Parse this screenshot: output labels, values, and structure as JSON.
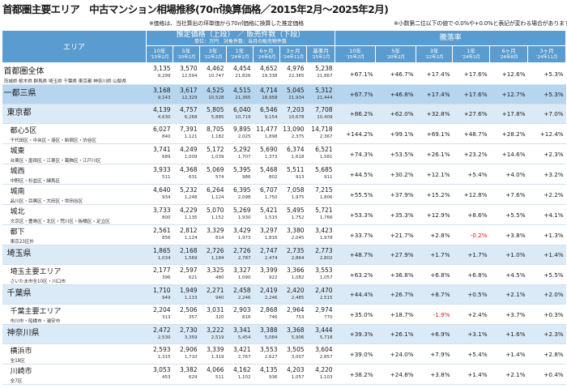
{
  "title": "首都圏主要エリア　中古マンション相場推移(70㎡換算価格／2015年2月～2025年2月)",
  "note_price": "※価格は、当社算出の坪単価から70㎡価格に換算した推定価格",
  "note_rate": "※小数第二位以下の値で-0.0%や+0.0%と表記が変わる場合があります。",
  "header": {
    "area": "エリア",
    "price_group": "推定価格（上段） ／ 販売件数（下段）",
    "price_unit": "単位：万円　対象件数：当月の販売物件数",
    "rate_group": "騰落率",
    "price_cols": [
      {
        "top": "10年",
        "sub": "'15年2月"
      },
      {
        "top": "5年",
        "sub": "'20年2月"
      },
      {
        "top": "3年",
        "sub": "'22年2月"
      },
      {
        "top": "1年",
        "sub": "'24年2月"
      },
      {
        "top": "6ヶ月",
        "sub": "'24年8月"
      },
      {
        "top": "3ヶ月",
        "sub": "'24年11月"
      },
      {
        "top": "基準月",
        "sub": "'25年2月"
      }
    ],
    "rate_cols": [
      {
        "top": "10年",
        "sub": "'15年2月"
      },
      {
        "top": "5年",
        "sub": "'20年2月"
      },
      {
        "top": "3年",
        "sub": "'22年2月"
      },
      {
        "top": "1年",
        "sub": "'24年2月"
      },
      {
        "top": "6ヶ月",
        "sub": "'24年8月"
      },
      {
        "top": "3ヶ月",
        "sub": "'24年11月"
      }
    ]
  },
  "rows": [
    {
      "level": 0,
      "name": "首都圏全体",
      "sub": "茨城県 栃木県 群馬県 埼玉県 千葉県 東京都 神奈川県 山梨県",
      "prices": [
        "3,135",
        "3,570",
        "4,462",
        "4,454",
        "4,652",
        "4,976",
        "5,238"
      ],
      "counts": [
        "9,299",
        "12,594",
        "10,747",
        "21,826",
        "19,338",
        "22,365",
        "21,867"
      ],
      "rates": [
        "+67.1%",
        "+46.7%",
        "+17.4%",
        "+17.6%",
        "+12.6%",
        "+5.3%"
      ]
    },
    {
      "level": 1,
      "name": "一都三県",
      "sub": "",
      "prices": [
        "3,168",
        "3,617",
        "4,525",
        "4,515",
        "4,714",
        "5,045",
        "5,312"
      ],
      "counts": [
        "9,143",
        "12,329",
        "10,528",
        "21,365",
        "18,958",
        "21,934",
        "21,444"
      ],
      "rates": [
        "+67.7%",
        "+46.8%",
        "+17.4%",
        "+17.6%",
        "+12.7%",
        "+5.3%"
      ]
    },
    {
      "level": 2,
      "name": "東京都",
      "sub": "",
      "prices": [
        "4,139",
        "4,757",
        "5,805",
        "6,040",
        "6,546",
        "7,203",
        "7,708"
      ],
      "counts": [
        "4,630",
        "6,268",
        "5,885",
        "10,719",
        "9,154",
        "10,678",
        "10,409"
      ],
      "rates": [
        "+86.2%",
        "+62.0%",
        "+32.8%",
        "+27.6%",
        "+17.8%",
        "+7.0%"
      ]
    },
    {
      "level": 3,
      "name": "都心5区",
      "sub": "千代田区・中央区・港区・新宿区・渋谷区",
      "prices": [
        "6,027",
        "7,391",
        "8,705",
        "9,895",
        "11,477",
        "13,090",
        "14,718"
      ],
      "counts": [
        "840",
        "1,121",
        "1,182",
        "2,025",
        "1,898",
        "2,375",
        "2,367"
      ],
      "rates": [
        "+144.2%",
        "+99.1%",
        "+69.1%",
        "+48.7%",
        "+28.2%",
        "+12.4%"
      ]
    },
    {
      "level": 3,
      "name": "城東",
      "sub": "台東区・墨田区・江東区・葛飾区・江戸川区",
      "prices": [
        "3,741",
        "4,249",
        "5,172",
        "5,292",
        "5,690",
        "6,374",
        "6,521"
      ],
      "counts": [
        "689",
        "1,009",
        "1,039",
        "1,707",
        "1,373",
        "1,618",
        "1,581"
      ],
      "rates": [
        "+74.3%",
        "+53.5%",
        "+26.1%",
        "+23.2%",
        "+14.6%",
        "+2.3%"
      ]
    },
    {
      "level": 3,
      "name": "城西",
      "sub": "中野区・杉並区・練馬区",
      "prices": [
        "3,933",
        "4,368",
        "5,069",
        "5,395",
        "5,468",
        "5,511",
        "5,685"
      ],
      "counts": [
        "511",
        "631",
        "574",
        "986",
        "802",
        "913",
        "911"
      ],
      "rates": [
        "+44.5%",
        "+30.2%",
        "+12.1%",
        "+5.4%",
        "+4.0%",
        "+3.2%"
      ]
    },
    {
      "level": 3,
      "name": "城南",
      "sub": "品川区・目黒区・大田区・世田谷区",
      "prices": [
        "4,640",
        "5,232",
        "6,264",
        "6,395",
        "6,707",
        "7,058",
        "7,215"
      ],
      "counts": [
        "934",
        "1,248",
        "1,124",
        "2,098",
        "1,750",
        "1,975",
        "1,806"
      ],
      "rates": [
        "+55.5%",
        "+37.9%",
        "+15.2%",
        "+12.8%",
        "+7.6%",
        "+2.2%"
      ]
    },
    {
      "level": 3,
      "name": "城北",
      "sub": "文京区・豊島区・北区・荒川区・板橋区・足立区",
      "prices": [
        "3,733",
        "4,229",
        "5,070",
        "5,269",
        "5,421",
        "5,495",
        "5,721"
      ],
      "counts": [
        "800",
        "1,135",
        "1,152",
        "1,930",
        "1,515",
        "1,752",
        "1,766"
      ],
      "rates": [
        "+53.3%",
        "+35.3%",
        "+12.9%",
        "+8.6%",
        "+5.5%",
        "+4.1%"
      ]
    },
    {
      "level": 3,
      "name": "都下",
      "sub": "東京23区外",
      "prices": [
        "2,561",
        "2,812",
        "3,329",
        "3,429",
        "3,297",
        "3,380",
        "3,423"
      ],
      "counts": [
        "856",
        "1,124",
        "814",
        "1,973",
        "1,816",
        "2,045",
        "1,978"
      ],
      "rates": [
        "+33.7%",
        "+21.7%",
        "+2.8%",
        "-0.2%",
        "+3.8%",
        "+1.3%"
      ]
    },
    {
      "level": 2,
      "name": "埼玉県",
      "sub": "",
      "prices": [
        "1,865",
        "2,168",
        "2,726",
        "2,726",
        "2,747",
        "2,735",
        "2,773"
      ],
      "counts": [
        "1,034",
        "1,569",
        "1,184",
        "2,787",
        "2,474",
        "2,864",
        "2,802"
      ],
      "rates": [
        "+48.7%",
        "+27.9%",
        "+1.7%",
        "+1.7%",
        "+1.0%",
        "+1.4%"
      ]
    },
    {
      "level": 3,
      "name": "埼玉主要エリア",
      "sub": "さいたま市全10区・川口市",
      "prices": [
        "2,177",
        "2,597",
        "3,325",
        "3,327",
        "3,399",
        "3,366",
        "3,553"
      ],
      "counts": [
        "396",
        "621",
        "480",
        "1,090",
        "922",
        "1,082",
        "1,057"
      ],
      "rates": [
        "+63.2%",
        "+36.8%",
        "+6.8%",
        "+6.8%",
        "+4.5%",
        "+5.5%"
      ]
    },
    {
      "level": 2,
      "name": "千葉県",
      "sub": "",
      "prices": [
        "1,710",
        "1,949",
        "2,271",
        "2,458",
        "2,419",
        "2,420",
        "2,470"
      ],
      "counts": [
        "949",
        "1,133",
        "940",
        "2,246",
        "2,246",
        "2,485",
        "2,515"
      ],
      "rates": [
        "+44.4%",
        "+26.7%",
        "+8.7%",
        "+0.5%",
        "+2.1%",
        "+2.0%"
      ]
    },
    {
      "level": 3,
      "name": "千葉主要エリア",
      "sub": "市川市・船橋市・浦安市",
      "prices": [
        "2,204",
        "2,506",
        "3,031",
        "2,903",
        "2,868",
        "2,964",
        "2,974"
      ],
      "counts": [
        "313",
        "357",
        "320",
        "816",
        "746",
        "753",
        "770"
      ],
      "rates": [
        "+35.0%",
        "+18.7%",
        "-1.9%",
        "+2.4%",
        "+3.7%",
        "+0.3%"
      ]
    },
    {
      "level": 2,
      "name": "神奈川県",
      "sub": "",
      "prices": [
        "2,472",
        "2,730",
        "3,222",
        "3,341",
        "3,388",
        "3,368",
        "3,444"
      ],
      "counts": [
        "2,530",
        "3,359",
        "2,519",
        "5,454",
        "5,084",
        "5,906",
        "5,718"
      ],
      "rates": [
        "+39.3%",
        "+26.1%",
        "+6.9%",
        "+3.1%",
        "+1.6%",
        "+2.3%"
      ]
    },
    {
      "level": 3,
      "name": "横浜市",
      "sub": "全18区",
      "prices": [
        "2,593",
        "2,906",
        "3,339",
        "3,421",
        "3,553",
        "3,505",
        "3,604"
      ],
      "counts": [
        "1,315",
        "1,710",
        "1,319",
        "2,767",
        "2,627",
        "3,007",
        "2,857"
      ],
      "rates": [
        "+39.0%",
        "+24.0%",
        "+7.9%",
        "+5.4%",
        "+1.4%",
        "+2.8%"
      ]
    },
    {
      "level": 3,
      "name": "川崎市",
      "sub": "全7区",
      "prices": [
        "3,053",
        "3,382",
        "4,066",
        "4,162",
        "4,135",
        "4,203",
        "4,220"
      ],
      "counts": [
        "453",
        "629",
        "511",
        "1,102",
        "936",
        "1,057",
        "1,103"
      ],
      "rates": [
        "+38.2%",
        "+24.8%",
        "+3.8%",
        "+1.4%",
        "+2.1%",
        "+0.4%"
      ]
    }
  ]
}
